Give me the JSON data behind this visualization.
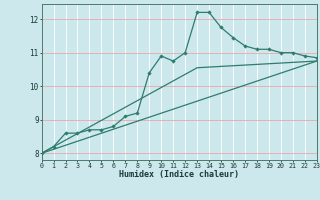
{
  "xlabel": "Humidex (Indice chaleur)",
  "background_color": "#cde8ec",
  "grid_color": "#e8c8c8",
  "line_color": "#2d7d6e",
  "x_min": 0,
  "x_max": 23,
  "y_min": 7.8,
  "y_max": 12.45,
  "yticks": [
    8,
    9,
    10,
    11,
    12
  ],
  "xticks": [
    0,
    1,
    2,
    3,
    4,
    5,
    6,
    7,
    8,
    9,
    10,
    11,
    12,
    13,
    14,
    15,
    16,
    17,
    18,
    19,
    20,
    21,
    22,
    23
  ],
  "series1_x": [
    0,
    1,
    2,
    3,
    4,
    5,
    6,
    7,
    8,
    9,
    10,
    11,
    12,
    13,
    14,
    15,
    16,
    17,
    18,
    19,
    20,
    21,
    22,
    23
  ],
  "series1_y": [
    8.0,
    8.2,
    8.6,
    8.6,
    8.7,
    8.7,
    8.8,
    9.1,
    9.2,
    10.4,
    10.9,
    10.75,
    11.0,
    12.2,
    12.2,
    11.75,
    11.45,
    11.2,
    11.1,
    11.1,
    11.0,
    11.0,
    10.9,
    10.85
  ],
  "series2_x": [
    0,
    23
  ],
  "series2_y": [
    8.0,
    10.75
  ],
  "series3_x": [
    0,
    13,
    23
  ],
  "series3_y": [
    8.0,
    10.55,
    10.75
  ]
}
